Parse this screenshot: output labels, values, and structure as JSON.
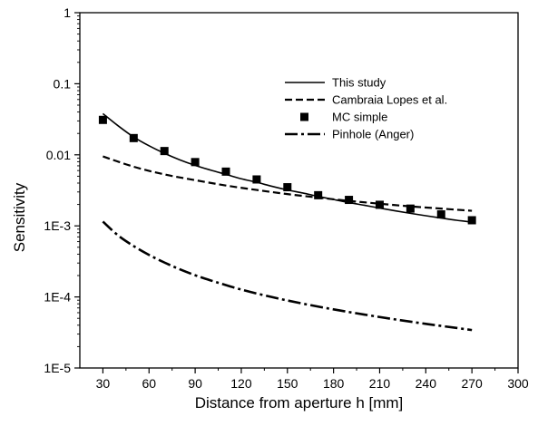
{
  "chart_data": {
    "type": "line",
    "xlabel": "Distance from aperture h [mm]",
    "ylabel": "Sensitivity",
    "xlim": [
      15,
      300
    ],
    "ylim": [
      1e-05,
      1
    ],
    "yscale": "log",
    "xticks": [
      30,
      60,
      90,
      120,
      150,
      180,
      210,
      240,
      270,
      300
    ],
    "yticks": [
      1e-05,
      0.0001,
      0.001,
      0.01,
      0.1,
      1
    ],
    "ytick_labels": [
      "1E-5",
      "1E-4",
      "1E-3",
      "0.01",
      "0.1",
      "1"
    ],
    "legend_position": "upper-right",
    "series": [
      {
        "name": "This study",
        "style": "solid",
        "x": [
          30,
          40,
          50,
          60,
          70,
          80,
          90,
          100,
          110,
          120,
          130,
          140,
          150,
          160,
          170,
          180,
          190,
          200,
          210,
          220,
          230,
          240,
          250,
          260,
          270
        ],
        "y": [
          0.038,
          0.0255,
          0.0178,
          0.0134,
          0.0105,
          0.0085,
          0.0071,
          0.0061,
          0.0053,
          0.0046,
          0.0041,
          0.0036,
          0.0032,
          0.0029,
          0.0026,
          0.00235,
          0.00213,
          0.00195,
          0.00178,
          0.00163,
          0.0015,
          0.00139,
          0.00129,
          0.0012,
          0.00113
        ]
      },
      {
        "name": "Cambraia Lopes et al.",
        "style": "dash",
        "x": [
          30,
          50,
          70,
          90,
          110,
          130,
          150,
          170,
          190,
          210,
          230,
          250,
          270
        ],
        "y": [
          0.0095,
          0.0068,
          0.0053,
          0.0044,
          0.0037,
          0.0032,
          0.0028,
          0.0025,
          0.00225,
          0.00205,
          0.00188,
          0.00175,
          0.00163
        ]
      },
      {
        "name": "MC simple",
        "style": "markers",
        "x": [
          30,
          50,
          70,
          90,
          110,
          130,
          150,
          170,
          190,
          210,
          230,
          250,
          270
        ],
        "y": [
          0.031,
          0.0172,
          0.0113,
          0.0079,
          0.0058,
          0.0045,
          0.0035,
          0.0027,
          0.00232,
          0.00198,
          0.00175,
          0.00145,
          0.0012
        ]
      },
      {
        "name": "Pinhole (Anger)",
        "style": "dash-dot",
        "x": [
          30,
          40,
          50,
          60,
          70,
          80,
          90,
          100,
          120,
          140,
          160,
          180,
          200,
          220,
          240,
          260,
          270
        ],
        "y": [
          0.00115,
          0.00073,
          0.00052,
          0.00039,
          0.000305,
          0.000245,
          0.000202,
          0.000171,
          0.000127,
          9.95e-05,
          8.05e-05,
          6.68e-05,
          5.65e-05,
          4.83e-05,
          4.18e-05,
          3.66e-05,
          3.42e-05
        ]
      }
    ]
  }
}
